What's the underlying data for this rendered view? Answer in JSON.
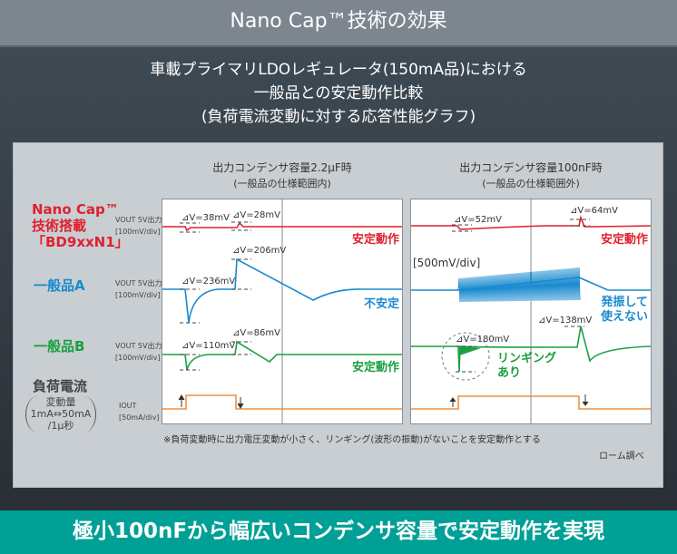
{
  "header": {
    "title": "Nano Cap™技術の効果"
  },
  "subtitle": {
    "line1": "車載プライマリLDOレギュレータ(150mA品)における",
    "line2": "一般品との安定動作比較",
    "line3": "(負荷電流変動に対する応答性能グラフ)"
  },
  "rows": [
    {
      "label1": "Nano Cap™",
      "label2": "技術搭載",
      "label3": "「BD9xxN1」",
      "color": "#e0202e",
      "axis1": "VOUT 5V出力",
      "axis2": "[100mV/div]"
    },
    {
      "label1": "一般品A",
      "color": "#1a8ad0",
      "axis1": "VOUT 5V出力",
      "axis2": "[100mV/div]"
    },
    {
      "label1": "一般品B",
      "color": "#1aa040",
      "axis1": "VOUT 5V出力",
      "axis2": "[100mV/div]"
    },
    {
      "label1": "負荷電流",
      "label2": "変動量",
      "label3": "1mA⇔50mA",
      "label4": "/1μ秒",
      "color": "#f09040",
      "axis1": "IOUT",
      "axis2": "[50mA/div]"
    }
  ],
  "charts": [
    {
      "title": "出力コンデンサ容量2.2μF時",
      "subtitle": "(一般品の仕様範囲内)",
      "dv": [
        "⊿V=38mV",
        "⊿V=28mV",
        "⊿V=236mV",
        "⊿V=206mV",
        "⊿V=110mV",
        "⊿V=86mV"
      ],
      "status": [
        "安定動作",
        "不安定",
        "安定動作"
      ]
    },
    {
      "title": "出力コンデンサ容量100nF時",
      "subtitle": "(一般品の仕様範囲外)",
      "dv": [
        "⊿V=52mV",
        "⊿V=64mV",
        "⊿V=180mV",
        "⊿V=138mV"
      ],
      "scale": "[500mV/div]",
      "status": [
        "安定動作",
        "発振して",
        "使えない",
        "リンギング",
        "あり"
      ]
    }
  ],
  "note": "※負荷変動時に出力電圧変動が小さく、リンギング(波形の振動)がないことを安定動作とする",
  "source": "ローム調べ",
  "banner": "極小100nFから幅広いコンデンサ容量で安定動作を実現"
}
